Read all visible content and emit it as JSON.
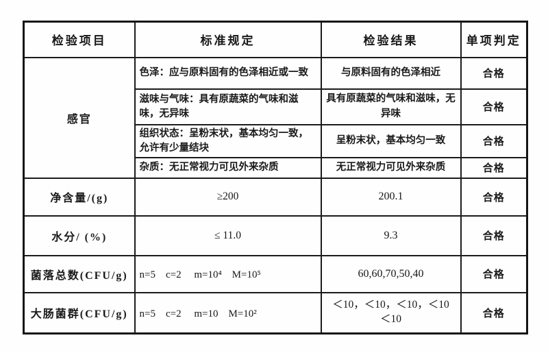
{
  "table": {
    "headers": [
      "检验项目",
      "标准规定",
      "检验结果",
      "单项判定"
    ],
    "sensory": {
      "item": "感官",
      "rows": [
        {
          "standard": "色泽：应与原料固有的色泽相近或一致",
          "result": "与原料固有的色泽相近",
          "judgment": "合格"
        },
        {
          "standard": "滋味与气味：具有原蔬菜的气味和滋味，无异味",
          "result": "具有原蔬菜的气味和滋味，无异味",
          "judgment": "合格"
        },
        {
          "standard": "组织状态：呈粉末状，基本均匀一致，允许有少量结块",
          "result": "呈粉末状，基本均匀一致",
          "judgment": "合格"
        },
        {
          "standard": "杂质：无正常视力可见外来杂质",
          "result": "无正常视力可见外来杂质",
          "judgment": "合格"
        }
      ]
    },
    "rows": [
      {
        "item": "净含量/(g)",
        "standard": "≥200",
        "result": "200.1",
        "judgment": "合格"
      },
      {
        "item": "水分/ (%)",
        "standard": "≤ 11.0",
        "result": "9.3",
        "judgment": "合格"
      },
      {
        "item": "菌落总数(CFU/g)",
        "standard": "n=5　c=2　 m=10⁴　M=10⁵",
        "result": "60,60,70,50,40",
        "judgment": "合格"
      },
      {
        "item": "大肠菌群(CFU/g)",
        "standard": "n=5　c=2　 m=10　M=10²",
        "result_line1": "＜10，＜10，＜10，＜10",
        "result_line2": "＜10",
        "judgment": "合格"
      }
    ]
  }
}
